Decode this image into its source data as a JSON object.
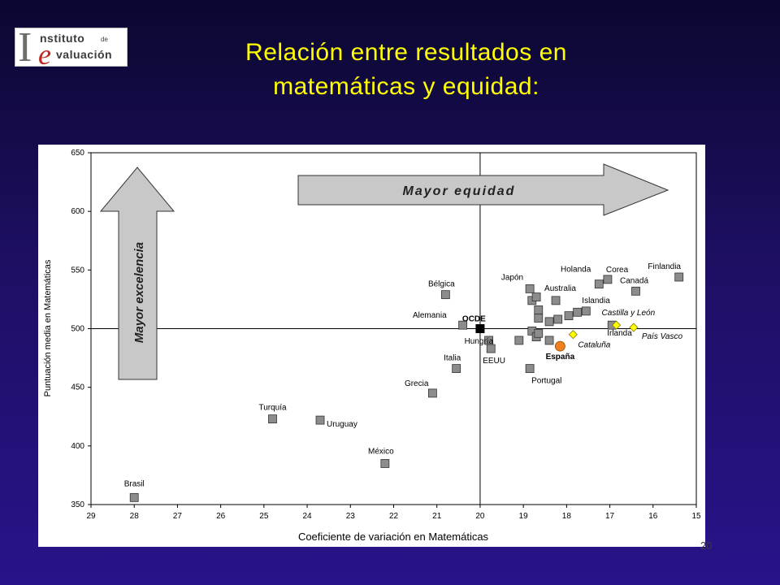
{
  "logo": {
    "line1_initial": "I",
    "line1_rest": "nstituto",
    "line1_small": "de",
    "line2_initial": "e",
    "line2_rest": "valuación"
  },
  "slide": {
    "title_line1": "Relación entre resultados en",
    "title_line2": "matemáticas y equidad:",
    "page_number": "20"
  },
  "colors": {
    "background": "#1e0f63",
    "title": "#ffff00",
    "country_marker": "#8c8c8c",
    "ocde_marker": "#000000",
    "spain_marker": "#f08020",
    "region_marker": "#ffff00"
  },
  "chart_data": {
    "type": "scatter",
    "xlabel": "Coeficiente de variación en Matemáticas",
    "ylabel": "Puntuación media en Matemáticas",
    "xlim": [
      29,
      15
    ],
    "ylim": [
      350,
      650
    ],
    "x_reversed": true,
    "xticks": [
      29,
      28,
      27,
      26,
      25,
      24,
      23,
      22,
      21,
      20,
      19,
      18,
      17,
      16,
      15
    ],
    "yticks": [
      350,
      400,
      450,
      500,
      550,
      600,
      650
    ],
    "reference_lines": {
      "x": 20,
      "y": 500
    },
    "annotations": {
      "horizontal_arrow": "Mayor equidad",
      "vertical_arrow": "Mayor excelencia"
    },
    "points": [
      {
        "label": "Brasil",
        "x": 28.0,
        "y": 356,
        "kind": "country"
      },
      {
        "label": "Turquía",
        "x": 24.8,
        "y": 423,
        "kind": "country"
      },
      {
        "label": "Uruguay",
        "x": 23.7,
        "y": 422,
        "kind": "country"
      },
      {
        "label": "México",
        "x": 22.2,
        "y": 385,
        "kind": "country"
      },
      {
        "label": "Grecia",
        "x": 21.1,
        "y": 445,
        "kind": "country"
      },
      {
        "label": "Italia",
        "x": 20.55,
        "y": 466,
        "kind": "country"
      },
      {
        "label": "Bélgica",
        "x": 20.8,
        "y": 529,
        "kind": "country"
      },
      {
        "label": "Alemania",
        "x": 20.4,
        "y": 503,
        "kind": "country"
      },
      {
        "label": "OCDE",
        "x": 20.0,
        "y": 500,
        "kind": "ocde"
      },
      {
        "label": "Hungría",
        "x": 19.8,
        "y": 490,
        "kind": "country"
      },
      {
        "label": "EEUU",
        "x": 19.75,
        "y": 483,
        "kind": "country"
      },
      {
        "label": "Japón",
        "x": 18.85,
        "y": 534,
        "kind": "country"
      },
      {
        "label": "Portugal",
        "x": 18.85,
        "y": 466,
        "kind": "country"
      },
      {
        "label": "Australia",
        "x": 18.25,
        "y": 524,
        "kind": "country"
      },
      {
        "label": "Holanda",
        "x": 17.25,
        "y": 538,
        "kind": "country"
      },
      {
        "label": "Corea",
        "x": 17.05,
        "y": 542,
        "kind": "country"
      },
      {
        "label": "Canadá",
        "x": 16.4,
        "y": 532,
        "kind": "country"
      },
      {
        "label": "Finlandia",
        "x": 15.4,
        "y": 544,
        "kind": "country"
      },
      {
        "label": "Islandia",
        "x": 17.55,
        "y": 515,
        "kind": "country"
      },
      {
        "label": "Irlanda",
        "x": 16.95,
        "y": 503,
        "kind": "country"
      },
      {
        "label": "",
        "x": 18.8,
        "y": 524,
        "kind": "country"
      },
      {
        "label": "",
        "x": 18.7,
        "y": 527,
        "kind": "country"
      },
      {
        "label": "",
        "x": 18.65,
        "y": 516,
        "kind": "country"
      },
      {
        "label": "",
        "x": 18.65,
        "y": 509,
        "kind": "country"
      },
      {
        "label": "",
        "x": 18.8,
        "y": 498,
        "kind": "country"
      },
      {
        "label": "",
        "x": 18.7,
        "y": 493,
        "kind": "country"
      },
      {
        "label": "",
        "x": 18.65,
        "y": 496,
        "kind": "country"
      },
      {
        "label": "",
        "x": 19.1,
        "y": 490,
        "kind": "country"
      },
      {
        "label": "",
        "x": 18.4,
        "y": 506,
        "kind": "country"
      },
      {
        "label": "",
        "x": 18.4,
        "y": 490,
        "kind": "country"
      },
      {
        "label": "",
        "x": 18.2,
        "y": 508,
        "kind": "country"
      },
      {
        "label": "",
        "x": 17.95,
        "y": 511,
        "kind": "country"
      },
      {
        "label": "",
        "x": 17.75,
        "y": 514,
        "kind": "country"
      },
      {
        "label": "España",
        "x": 18.15,
        "y": 485,
        "kind": "spain"
      },
      {
        "label": "Cataluña",
        "x": 17.85,
        "y": 495,
        "kind": "region"
      },
      {
        "label": "Castilla y León",
        "x": 16.85,
        "y": 503,
        "kind": "region"
      },
      {
        "label": "País Vasco",
        "x": 16.45,
        "y": 501,
        "kind": "region"
      }
    ]
  }
}
